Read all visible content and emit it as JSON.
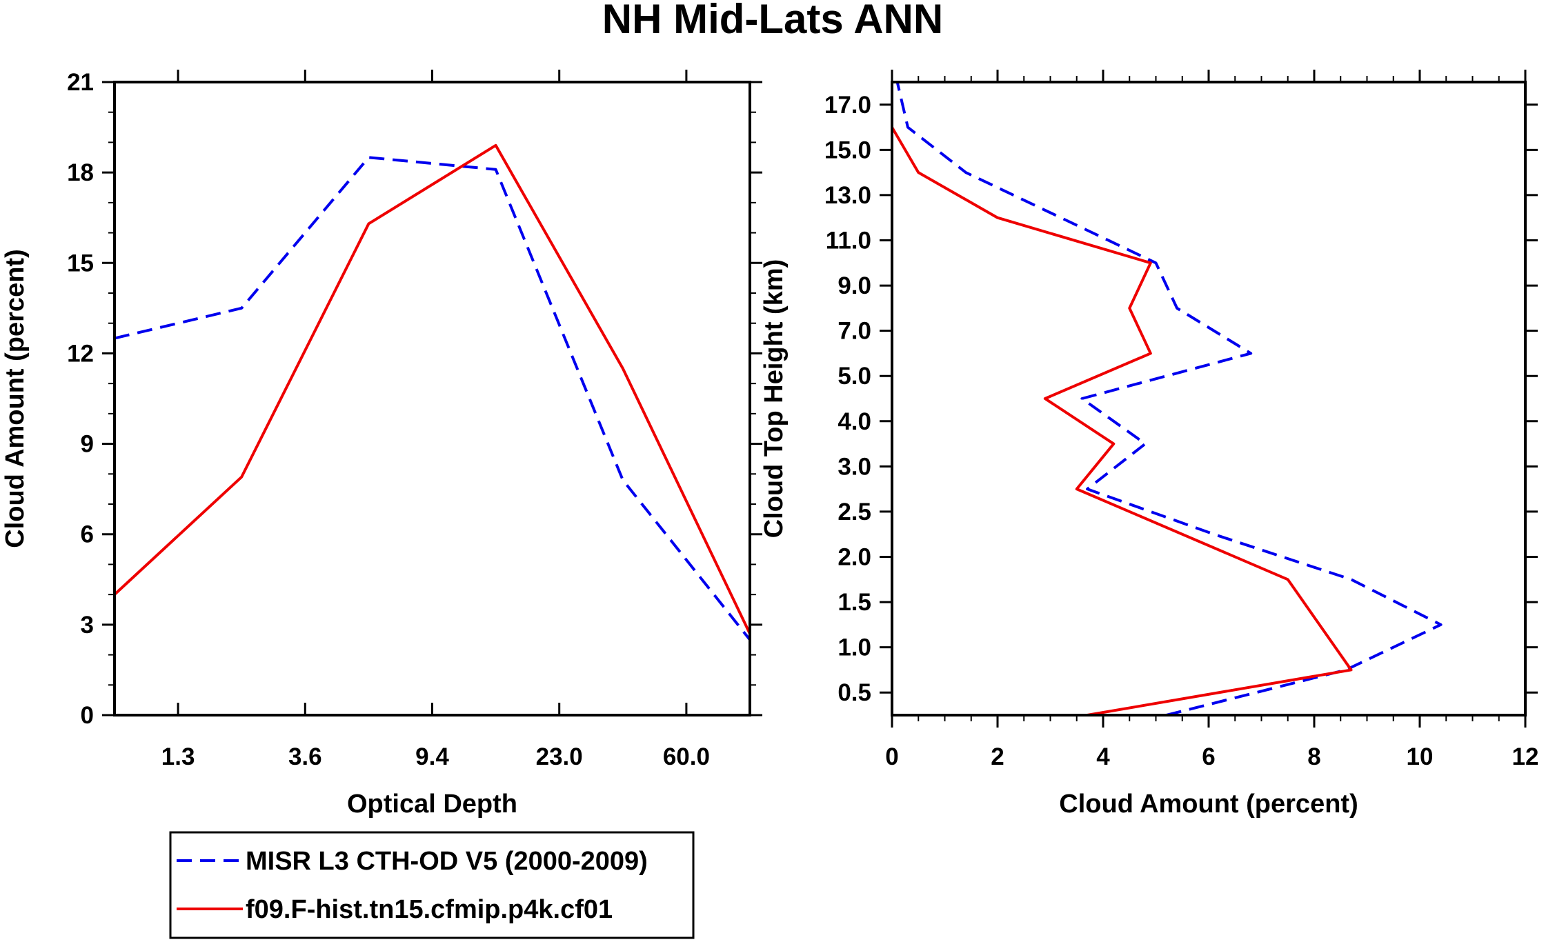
{
  "figure_title": "NH Mid-Lats ANN",
  "colors": {
    "obs": "#0000ee",
    "model": "#ee0000",
    "axis": "#000000"
  },
  "legend": {
    "entries": [
      {
        "label": "MISR L3 CTH-OD V5 (2000-2009)",
        "style": "dashed",
        "color": "#0000ee"
      },
      {
        "label": "f09.F-hist.tn15.cfmip.p4k.cf01",
        "style": "solid",
        "color": "#ee0000"
      }
    ]
  },
  "chart_data": [
    {
      "type": "line",
      "title": "",
      "xlabel": "Optical Depth",
      "ylabel": "Cloud Amount (percent)",
      "x_positions": [
        0,
        1,
        2,
        3,
        4,
        5,
        6
      ],
      "xlim": [
        0,
        5
      ],
      "xticks": [
        {
          "pos": 0.5,
          "label": "1.3"
        },
        {
          "pos": 1.5,
          "label": "3.6"
        },
        {
          "pos": 2.5,
          "label": "9.4"
        },
        {
          "pos": 3.5,
          "label": "23.0"
        },
        {
          "pos": 4.5,
          "label": "60.0"
        }
      ],
      "top_ticks": [
        0.5,
        1.5,
        2.5,
        3.5,
        4.5
      ],
      "ylim": [
        0,
        21
      ],
      "yticks": [
        0,
        3,
        6,
        9,
        12,
        15,
        18,
        21
      ],
      "y_minor_step": 1,
      "series": [
        {
          "name": "MISR L3 CTH-OD V5 (2000-2009)",
          "style": "dashed",
          "points": [
            [
              0,
              12.5
            ],
            [
              1,
              13.5
            ],
            [
              2,
              18.5
            ],
            [
              3,
              18.1
            ],
            [
              4,
              7.8
            ],
            [
              5,
              2.5
            ]
          ]
        },
        {
          "name": "f09.F-hist.tn15.cfmip.p4k.cf01",
          "style": "solid",
          "points": [
            [
              0,
              4.0
            ],
            [
              1,
              7.9
            ],
            [
              2,
              16.3
            ],
            [
              3,
              18.9
            ],
            [
              4,
              11.5
            ],
            [
              5,
              2.7
            ]
          ]
        }
      ]
    },
    {
      "type": "line",
      "title": "",
      "xlabel": "Cloud Amount (percent)",
      "ylabel": "Cloud Top Height (km)",
      "xlim": [
        0,
        12
      ],
      "xticks": [
        0,
        2,
        4,
        6,
        8,
        10,
        12
      ],
      "x_minor_step": 0.5,
      "ylim": [
        0,
        14
      ],
      "yticks": [
        {
          "pos": 0.5,
          "label": "0.5"
        },
        {
          "pos": 1.5,
          "label": "1.0"
        },
        {
          "pos": 2.5,
          "label": "1.5"
        },
        {
          "pos": 3.5,
          "label": "2.0"
        },
        {
          "pos": 4.5,
          "label": "2.5"
        },
        {
          "pos": 5.5,
          "label": "3.0"
        },
        {
          "pos": 6.5,
          "label": "4.0"
        },
        {
          "pos": 7.5,
          "label": "5.0"
        },
        {
          "pos": 8.5,
          "label": "7.0"
        },
        {
          "pos": 9.5,
          "label": "9.0"
        },
        {
          "pos": 10.5,
          "label": "11.0"
        },
        {
          "pos": 11.5,
          "label": "13.0"
        },
        {
          "pos": 12.5,
          "label": "15.0"
        },
        {
          "pos": 13.5,
          "label": "17.0"
        }
      ],
      "series": [
        {
          "name": "MISR L3 CTH-OD V5 (2000-2009)",
          "style": "dashed",
          "points": [
            [
              5.2,
              0.0
            ],
            [
              8.6,
              1.0
            ],
            [
              10.4,
              2.0
            ],
            [
              8.7,
              3.0
            ],
            [
              6.1,
              4.0
            ],
            [
              3.7,
              5.0
            ],
            [
              4.8,
              6.0
            ],
            [
              3.6,
              7.0
            ],
            [
              6.8,
              8.0
            ],
            [
              5.4,
              9.0
            ],
            [
              5.0,
              10.0
            ],
            [
              1.4,
              12.0
            ],
            [
              0.3,
              13.0
            ],
            [
              0.1,
              14.0
            ]
          ]
        },
        {
          "name": "f09.F-hist.tn15.cfmip.p4k.cf01",
          "style": "solid",
          "points": [
            [
              3.7,
              0.0
            ],
            [
              8.7,
              1.0
            ],
            [
              7.5,
              3.0
            ],
            [
              3.5,
              5.0
            ],
            [
              4.2,
              6.0
            ],
            [
              2.9,
              7.0
            ],
            [
              4.9,
              8.0
            ],
            [
              4.5,
              9.0
            ],
            [
              4.9,
              10.0
            ],
            [
              2.0,
              11.0
            ],
            [
              0.5,
              12.0
            ],
            [
              0.0,
              13.0
            ],
            [
              0.0,
              14.0
            ]
          ]
        }
      ]
    }
  ]
}
